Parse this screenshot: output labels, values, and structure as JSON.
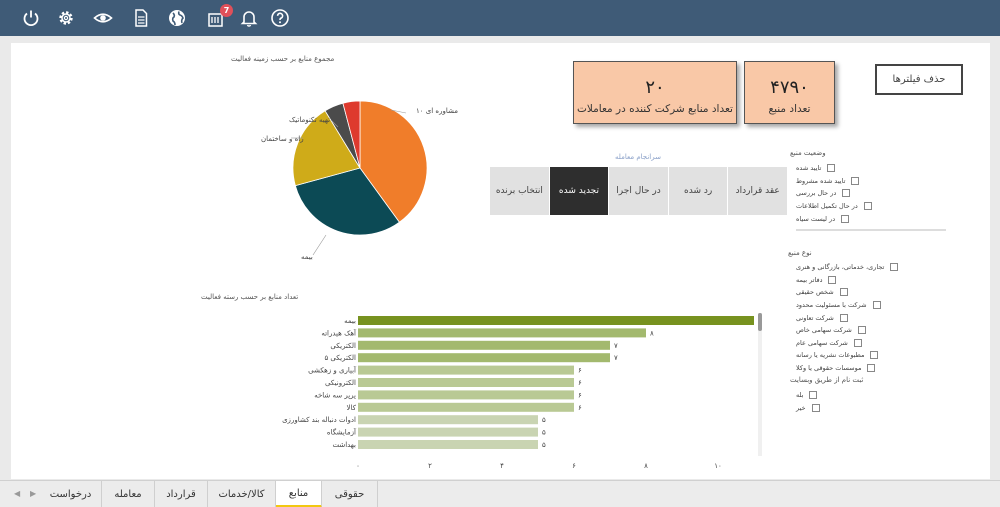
{
  "toolbar": {
    "icons": [
      "power-icon",
      "settings-icon",
      "eye-icon",
      "document-icon",
      "globe-icon",
      "notifications-list-icon",
      "bell-icon",
      "help-icon"
    ],
    "badge_count": "7"
  },
  "kpis": {
    "total_sources": {
      "value": "۴۷۹۰",
      "label": "تعداد منبع"
    },
    "participating_sources": {
      "value": "۲۰",
      "label": "تعداد منابع شرکت کننده در معاملات"
    }
  },
  "clear_filters_label": "حذف فیلترها",
  "deal_outcome": {
    "title": "سرانجام معامله",
    "buttons": [
      "عقد قرارداد",
      "رد شده",
      "در حال اجرا",
      "تجدید شده",
      "انتخاب برنده"
    ],
    "active": "تجدید شده"
  },
  "source_status": {
    "title": "وضعیت منبع",
    "items": [
      "تایید شده",
      "تایید شده مشروط",
      "در حال بررسی",
      "در حال تکمیل اطلاعات",
      "در لیست سیاه"
    ]
  },
  "source_type": {
    "title": "نوع منبع",
    "items": [
      "تجاری، خدماتی، بازرگانی و هنری",
      "دفاتر بیمه",
      "شخص حقیقی",
      "شرکت با مسئولیت محدود",
      "شرکت تعاونی",
      "شرکت سهامی خاص",
      "شرکت سهامی عام",
      "مطبوعات نشریه یا رسانه",
      "موسسات حقوقی یا وکلا"
    ]
  },
  "registered_via_site": {
    "title": "ثبت نام از طریق وبسایت",
    "items": [
      "بله",
      "خیر"
    ]
  },
  "pie_chart_data": {
    "type": "pie",
    "title": "مجموع منابع بر حسب زمینه فعالیت",
    "slices": [
      {
        "label": "مشاوره ای",
        "value": 39,
        "color": "#f07d2a"
      },
      {
        "label": "بیمه",
        "value": 30,
        "color": "#0c4a55"
      },
      {
        "label": "راه و ساختمان",
        "value": 20,
        "color": "#cfab19"
      },
      {
        "label": "تهیه تکنوماتیک",
        "value": 4.5,
        "color": "#4b4b4b"
      },
      {
        "label": "",
        "value": 4,
        "color": "#de3a2e"
      }
    ],
    "labels_shown": [
      "مشاوره ای ۱۰",
      "بیمه",
      "راه و ساختمان",
      "تهیه تکنوماتیک"
    ]
  },
  "chart_data": {
    "type": "bar",
    "title": "تعداد منابع بر حسب رسته فعالیت",
    "categories": [
      "بیمه",
      "آهک هیدراته",
      "الکتریکی",
      "الکتریکی ۵",
      "آبیاری و زهکشی",
      "الکترونیکی",
      "پرپر سه شاخه",
      "کالا",
      "ادوات دنباله بند کشاورزی",
      "آزمایشگاه",
      "بهداشت"
    ],
    "values": [
      11,
      8,
      7,
      7,
      6,
      6,
      6,
      6,
      5,
      5,
      5
    ],
    "value_labels": [
      "",
      "۸",
      "۷",
      "۷",
      "۶",
      "۶",
      "۶",
      "۶",
      "۵",
      "۵",
      "۵"
    ],
    "colors": [
      "#77921f",
      "#a3b96e",
      "#a3b96e",
      "#a3b96e",
      "#b9c994",
      "#b9c994",
      "#b9c994",
      "#b9c994",
      "#c9d4b2",
      "#c9d4b2",
      "#c9d4b2"
    ],
    "x_ticks": [
      0,
      2,
      4,
      6,
      8,
      10
    ],
    "x_tick_labels": [
      "۰",
      "۲",
      "۴",
      "۶",
      "۸",
      "۱۰"
    ],
    "xlim": [
      0,
      11
    ]
  },
  "tabs": {
    "items": [
      "حقوقی",
      "منابع",
      "کالا/خدمات",
      "قرارداد",
      "معامله",
      "درخواست"
    ],
    "active": "منابع"
  }
}
